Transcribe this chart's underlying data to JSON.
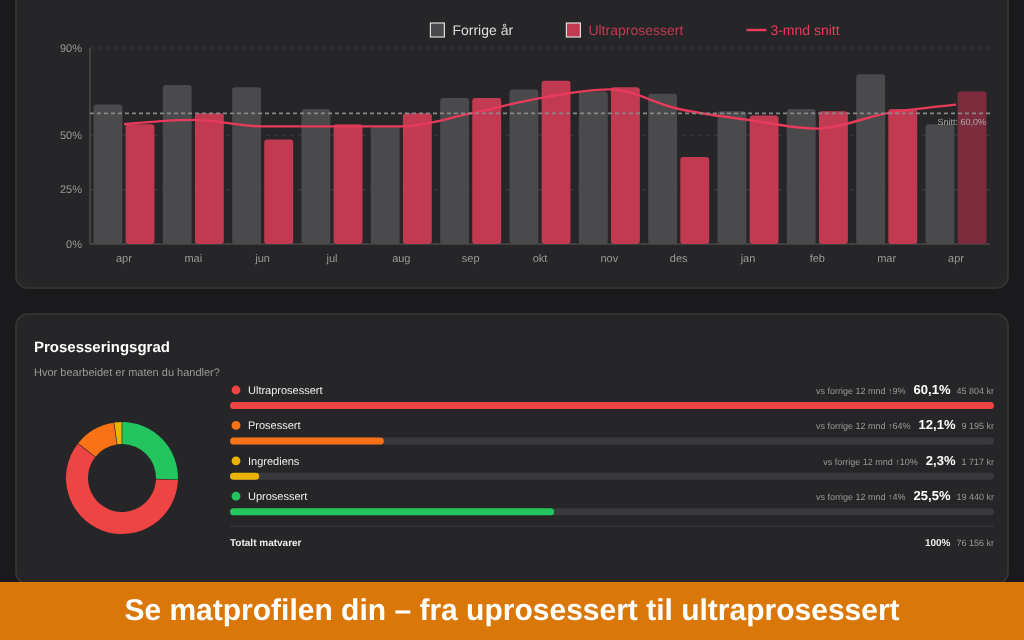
{
  "chart_data": [
    {
      "type": "bar",
      "categories": [
        "apr",
        "mai",
        "jun",
        "jul",
        "aug",
        "sep",
        "okt",
        "nov",
        "des",
        "jan",
        "feb",
        "mar",
        "apr"
      ],
      "series": [
        {
          "name": "Forrige år",
          "color": "#4a4a4d",
          "values": [
            64,
            73,
            72,
            62,
            54,
            67,
            71,
            70,
            69,
            61,
            62,
            78,
            55
          ]
        },
        {
          "name": "Ultraprosessert",
          "color": "#c23a52",
          "colors": [
            "#c23a52",
            "#c23a52",
            "#c23a52",
            "#c23a52",
            "#c23a52",
            "#c23a52",
            "#c23a52",
            "#c23a52",
            "#c23a52",
            "#c23a52",
            "#c23a52",
            "#c23a52",
            "#7c2c3c"
          ],
          "values": [
            55,
            60,
            48,
            55,
            60,
            67,
            75,
            72,
            40,
            59,
            61,
            62,
            70
          ]
        },
        {
          "name": "3-mnd snitt",
          "type": "line",
          "color": "#e83a5a",
          "values": [
            55,
            57,
            54,
            54,
            54,
            60,
            67,
            71,
            62,
            57,
            53,
            60,
            64
          ]
        }
      ],
      "ylim": [
        0,
        90
      ],
      "yticks": [
        {
          "value": 0,
          "label": "0%"
        },
        {
          "value": 25,
          "label": "25%"
        },
        {
          "value": 50,
          "label": "50%"
        },
        {
          "value": 90,
          "label": "90%"
        }
      ],
      "grid": "y",
      "legend": "top",
      "ref_lines": [
        {
          "axis": "y",
          "value": 60,
          "label": "Snitt: 60,0%"
        }
      ]
    },
    {
      "type": "donut",
      "title": "Prosesseringsgrad",
      "subtitle": "Hvor bearbeidet er maten du handler?",
      "categories": [
        null,
        null,
        null,
        null
      ],
      "values": [
        25.5,
        60.1,
        12.1,
        2.3
      ],
      "colors": [
        "#22c55e",
        "#ef4444",
        "#f97316",
        "#eab308"
      ]
    },
    {
      "type": "bar",
      "orientation": "horizontal",
      "categories": [
        "Ultraprosessert",
        "Prosessert",
        "Ingrediens",
        "Uprosessert"
      ],
      "values": [
        60.1,
        12.1,
        2.3,
        25.5
      ],
      "colors": [
        "#ef4444",
        "#f97316",
        "#eab308",
        "#22c55e"
      ],
      "value_labels": [
        "60,1%",
        "12,1%",
        "2,3%",
        "25,5%"
      ],
      "annotations": [
        "vs forrige 12 mnd ↑9%",
        "vs forrige 12 mnd ↑64%",
        "vs forrige 12 mnd ↑10%",
        "vs forrige 12 mnd ↑4%",
        "45 804 kr",
        "9 195 kr",
        "1 717 kr",
        "19 440 kr",
        "Totalt matvarer",
        "100%",
        "76 156 kr",
        "Se matprofilen din – fra uprosessert til ultraprosessert"
      ]
    }
  ]
}
